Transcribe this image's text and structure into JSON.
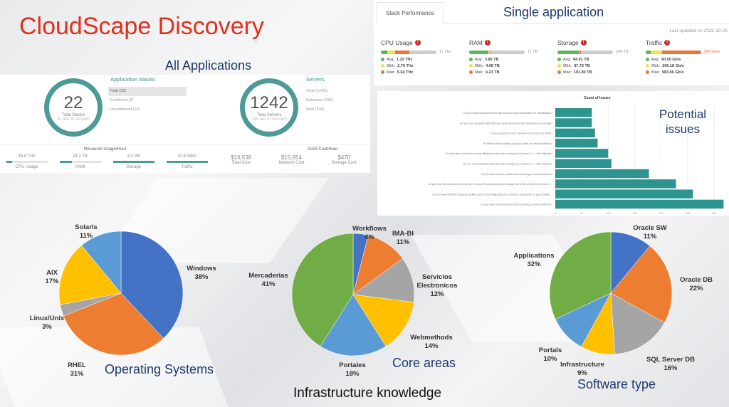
{
  "title": "CloudScape Discovery",
  "captions": {
    "all_apps": "All Applications",
    "single_app": "Single application",
    "potential": "Potential issues",
    "os": "Operating Systems",
    "core": "Core areas",
    "infra": "Infrastructure knowledge",
    "software": "Software type"
  },
  "overview": {
    "stacks": {
      "heading": "Application Stacks",
      "value": "22",
      "label": "Total Stacks",
      "sub": "20 are of concern",
      "items": [
        "Total (22)",
        "Confirmed (2)",
        "Unconfirmed (20)"
      ]
    },
    "servers": {
      "heading": "Servers",
      "value": "1242",
      "label": "Total Servers",
      "sub": "745 are of concern",
      "items": [
        "Total (1242)",
        "Database (446)",
        "Web (536)"
      ]
    },
    "resource": {
      "heading": "Resource Usage/Hour",
      "items": [
        {
          "value": "16.8 THz",
          "label": "CPU Usage",
          "fill": 0.15
        },
        {
          "value": "24.3 TB",
          "label": "RAM",
          "fill": 0.3
        },
        {
          "value": "3.2 PB",
          "label": "Storage",
          "fill": 1
        },
        {
          "value": "10.8 GB/s",
          "label": "Traffic",
          "fill": 1
        }
      ]
    },
    "cost": {
      "heading": "IAAS Cost/Hour",
      "items": [
        {
          "value": "$16,538",
          "label": "Total Cost"
        },
        {
          "value": "$15,654",
          "label": "Network Cost"
        },
        {
          "value": "$470",
          "label": "Storage Cost"
        }
      ]
    }
  },
  "stack_perf": {
    "tab": "Stack Performance",
    "updated": "Last updated on 2022-10-26",
    "alert": "!",
    "metrics": [
      {
        "name": "CPU Usage",
        "max_label": "11 THz",
        "avg": "1.33 THz",
        "p95": "2.79 THz",
        "max": "5.64 THz",
        "fills": [
          0.12,
          0.25,
          0.51
        ]
      },
      {
        "name": "RAM",
        "max_label": "11 TB",
        "avg": "3.80 TB",
        "p95": "4.08 TB",
        "max": "4.23 TB",
        "fills": [
          0.35,
          0.37,
          0.38
        ]
      },
      {
        "name": "Storage",
        "max_label": "244 TB",
        "avg": "94.91 TB",
        "p95": "97.72 TB",
        "max": "101.80 TB",
        "fills": [
          0.39,
          0.4,
          0.42
        ]
      },
      {
        "name": "Traffic",
        "max_label": "984 Gb/s",
        "avg": "90.50 Gb/s",
        "p95": "296.18 Gb/s",
        "max": "983.66 Gb/s",
        "fills": [
          0.09,
          0.3,
          1
        ]
      }
    ],
    "legend": {
      "avg": "Avg:",
      "p95": "95th:",
      "max": "Max:"
    },
    "colors": {
      "avg": "#5cb85c",
      "p95": "#f0e05a",
      "max": "#e8773a"
    }
  },
  "chart_data": [
    {
      "type": "bar",
      "title": "Count of Issues",
      "orientation": "horizontal",
      "xlim": [
        0,
        320
      ],
      "ticks": [
        "0",
        "50",
        "100",
        "150",
        "200",
        "250",
        "300"
      ],
      "categories": [
        "Do you have physical servers that would be good candidates for virtualization?",
        "Do you have physical data that uses more resources than necessary on average?",
        "Is your physical server hardware at or near end of life?",
        "Is VMware Tools running and up to date on virtual machines?",
        "Do you have Linux/Unix servers filesystems that are running out of space (i.e. > 90% utilized)?",
        "Do you have Windows disks that are running out of space (i.e. > 90% utilized)?",
        "Do you have receive packet loss occurring on virtual switches?",
        "Do you have Windows servers that are running OS versions that are already end of life or that will be end of ...",
        "Do you have Infoblox dropping packets due to misconfigurations or resource constraints on your firewall ...",
        "Do you have transmit packet loss occurring on virtual switches?"
      ],
      "values": [
        69,
        69,
        75,
        80,
        100,
        106,
        177,
        228,
        260,
        318
      ],
      "color": "#2e9490"
    },
    {
      "type": "pie",
      "title": "Operating Systems",
      "categories": [
        "Windows",
        "RHEL",
        "Linux/Unix",
        "AIX",
        "Solaris"
      ],
      "values": [
        38,
        31,
        3,
        17,
        11
      ],
      "colors": [
        "#4472c4",
        "#ed7d31",
        "#a5a5a5",
        "#ffc000",
        "#5b9bd5"
      ]
    },
    {
      "type": "pie",
      "title": "Core areas",
      "categories": [
        "Workflows",
        "IMA-BI",
        "Servicios Electronicos",
        "Webmethods",
        "Portales",
        "Mercaderias"
      ],
      "values": [
        4,
        11,
        12,
        14,
        18,
        41
      ],
      "colors": [
        "#4472c4",
        "#ed7d31",
        "#a5a5a5",
        "#ffc000",
        "#5b9bd5",
        "#70ad47"
      ]
    },
    {
      "type": "pie",
      "title": "Software type",
      "categories": [
        "Oracle SW",
        "Oracle DB",
        "SQL Server DB",
        "Infrastructure",
        "Portals",
        "Applications"
      ],
      "values": [
        11,
        22,
        16,
        9,
        10,
        32
      ],
      "colors": [
        "#4472c4",
        "#ed7d31",
        "#a5a5a5",
        "#ffc000",
        "#5b9bd5",
        "#70ad47"
      ]
    }
  ]
}
